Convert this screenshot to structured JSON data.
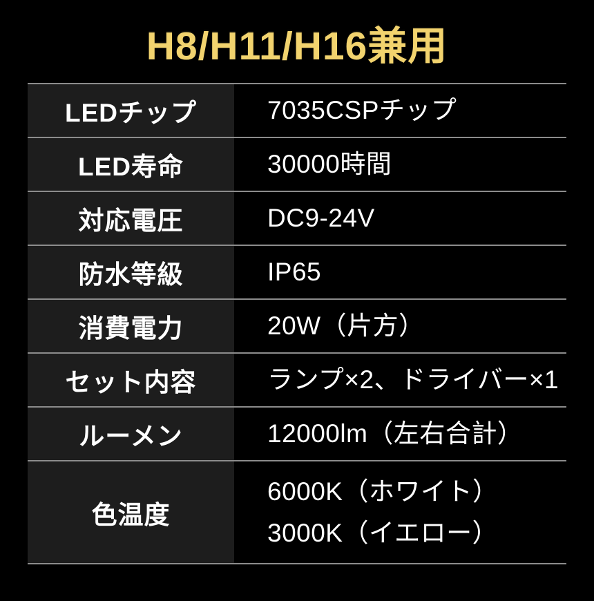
{
  "title": "H8/H11/H16兼用",
  "table": {
    "rows": [
      {
        "label": "LEDチップ",
        "value": "7035CSPチップ"
      },
      {
        "label": "LED寿命",
        "value": "30000時間"
      },
      {
        "label": "対応電圧",
        "value": "DC9-24V"
      },
      {
        "label": "防水等級",
        "value": "IP65"
      },
      {
        "label": "消費電力",
        "value": "20W（片方）"
      },
      {
        "label": "セット内容",
        "value": "ランプ×2、ドライバー×1"
      },
      {
        "label": "ルーメン",
        "value": "12000lm（左右合計）"
      },
      {
        "label": "色温度",
        "value_lines": [
          "6000K（ホワイト）",
          "3000K（イエロー）"
        ]
      }
    ]
  },
  "colors": {
    "background": "#000000",
    "title_gold": "#F2D36E",
    "label_cell_bg": "#1D1D1D",
    "separator_gray": "#8C8C8C",
    "text_white": "#FFFFFF"
  }
}
